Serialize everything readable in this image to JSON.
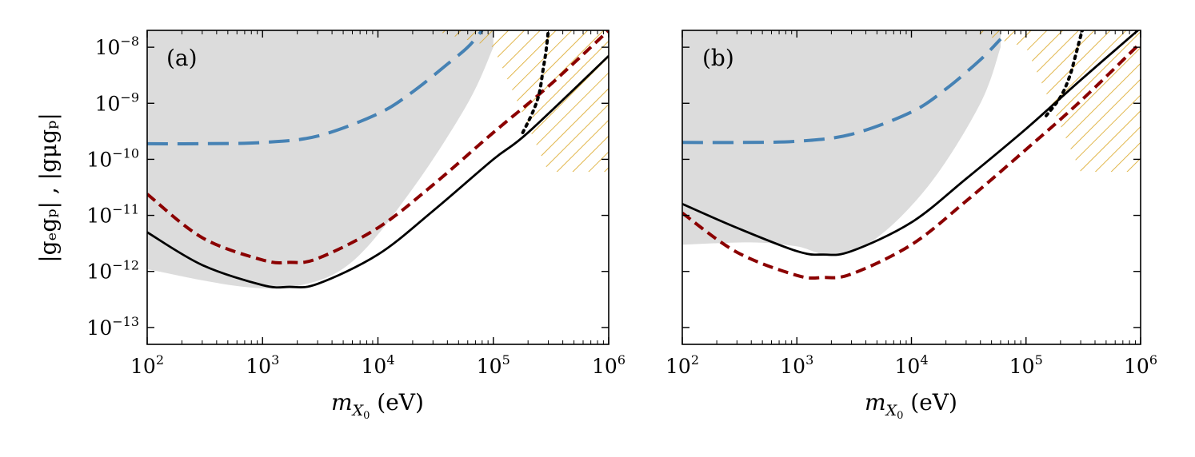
{
  "chart_data": [
    {
      "type": "line",
      "panel_label": "(a)",
      "xscale": "log",
      "yscale": "log",
      "xlim": [
        100,
        1000000
      ],
      "ylim": [
        5e-14,
        2e-08
      ],
      "xticks": [
        {
          "base": "10",
          "exp": "2"
        },
        {
          "base": "10",
          "exp": "3"
        },
        {
          "base": "10",
          "exp": "4"
        },
        {
          "base": "10",
          "exp": "5"
        },
        {
          "base": "10",
          "exp": "6"
        }
      ],
      "yticks": [
        {
          "base": "10",
          "exp": "−13",
          "value": 1e-13
        },
        {
          "base": "10",
          "exp": "−12",
          "value": 1e-12
        },
        {
          "base": "10",
          "exp": "−11",
          "value": 1e-11
        },
        {
          "base": "10",
          "exp": "−10",
          "value": 1e-10
        },
        {
          "base": "10",
          "exp": "−9",
          "value": 1e-09
        },
        {
          "base": "10",
          "exp": "−8",
          "value": 1e-08
        }
      ],
      "xlabel": {
        "main": "m",
        "sub": "X",
        "subsub": "0",
        "unit": " (eV)"
      },
      "ylabel": "|gₑgₚ| , |gμgₚ|",
      "gray_region": {
        "upper": {
          "x": [
            100,
            100000
          ],
          "y": [
            2e-08,
            2e-08
          ]
        },
        "lower": {
          "x": [
            100,
            600,
            2000,
            6000,
            20000,
            60000,
            100000
          ],
          "y": [
            1.1e-12,
            5.5e-13,
            5.5e-13,
            1.5e-12,
            3e-11,
            1e-09,
            1e-08
          ]
        }
      },
      "hatched_region": {
        "boundary": {
          "x": [
            30000,
            100000,
            300000,
            1000000,
            1000000,
            100000,
            30000
          ],
          "y": [
            2e-08,
            1e-08,
            6e-11,
            6e-11,
            2e-08,
            2e-08,
            2e-08
          ]
        }
      },
      "series": [
        {
          "name": "blue-dashed",
          "color": "#4682b4",
          "style": "longdash",
          "x": [
            100,
            300,
            1000,
            3000,
            10000,
            20000,
            40000,
            60000,
            80000
          ],
          "y": [
            1.9e-10,
            1.9e-10,
            2e-10,
            2.6e-10,
            6.5e-10,
            1.6e-09,
            5e-09,
            1e-08,
            2e-08
          ]
        },
        {
          "name": "darkred-dashed",
          "color": "#8b0000",
          "style": "dash",
          "x": [
            100,
            300,
            1000,
            1700,
            3000,
            10000,
            30000,
            100000,
            300000,
            1000000
          ],
          "y": [
            2.4e-11,
            4e-12,
            1.6e-12,
            1.45e-12,
            1.7e-12,
            6e-12,
            3.5e-11,
            3e-10,
            2e-09,
            2e-08
          ]
        },
        {
          "name": "black-solid",
          "color": "#000000",
          "style": "solid",
          "x": [
            100,
            300,
            1000,
            1700,
            3000,
            10000,
            30000,
            100000,
            200000,
            1000000
          ],
          "y": [
            5e-12,
            1.3e-12,
            5.7e-13,
            5.3e-13,
            6e-13,
            2e-12,
            1.2e-11,
            1e-10,
            3e-10,
            7e-09
          ]
        },
        {
          "name": "black-dotted",
          "color": "#000000",
          "style": "dot",
          "x": [
            180000,
            220000,
            250000,
            270000,
            285000,
            300000
          ],
          "y": [
            3e-10,
            7e-10,
            1.5e-09,
            4e-09,
            8e-09,
            2e-08
          ]
        }
      ]
    },
    {
      "type": "line",
      "panel_label": "(b)",
      "xscale": "log",
      "yscale": "log",
      "xlim": [
        100,
        1000000
      ],
      "ylim": [
        5e-14,
        2e-08
      ],
      "xticks": [
        {
          "base": "10",
          "exp": "2"
        },
        {
          "base": "10",
          "exp": "3"
        },
        {
          "base": "10",
          "exp": "4"
        },
        {
          "base": "10",
          "exp": "5"
        },
        {
          "base": "10",
          "exp": "6"
        }
      ],
      "yticks": [
        {
          "value": 1e-13
        },
        {
          "value": 1e-12
        },
        {
          "value": 1e-11
        },
        {
          "value": 1e-10
        },
        {
          "value": 1e-09
        },
        {
          "value": 1e-08
        }
      ],
      "xlabel": {
        "main": "m",
        "sub": "X",
        "subsub": "0",
        "unit": " (eV)"
      },
      "gray_region": {
        "upper": {
          "x": [
            100,
            60000
          ],
          "y": [
            2e-08,
            2e-08
          ]
        },
        "lower": {
          "x": [
            100,
            400,
            1000,
            2000,
            5000,
            15000,
            40000,
            60000
          ],
          "y": [
            3e-12,
            3.3e-12,
            2.8e-12,
            2e-12,
            4e-12,
            4e-11,
            1e-09,
            1e-08
          ]
        }
      },
      "hatched_region": {
        "boundary": {
          "x": [
            30000,
            100000,
            300000,
            1000000,
            1000000,
            100000,
            30000
          ],
          "y": [
            2e-08,
            1e-08,
            6e-11,
            6e-11,
            2e-08,
            2e-08,
            2e-08
          ]
        }
      },
      "series": [
        {
          "name": "blue-dashed",
          "color": "#4682b4",
          "style": "longdash",
          "x": [
            100,
            300,
            1000,
            3000,
            10000,
            20000,
            40000,
            60000
          ],
          "y": [
            2e-10,
            2e-10,
            2.1e-10,
            2.8e-10,
            7e-10,
            1.8e-09,
            6e-09,
            1.4e-08
          ]
        },
        {
          "name": "darkred-dashed",
          "color": "#8b0000",
          "style": "dash",
          "x": [
            100,
            300,
            1000,
            1700,
            3000,
            10000,
            30000,
            100000,
            300000,
            1000000
          ],
          "y": [
            1.1e-11,
            2.2e-12,
            8.5e-13,
            7.8e-13,
            9e-13,
            3e-12,
            1.8e-11,
            1.5e-10,
            1.1e-09,
            1.2e-08
          ]
        },
        {
          "name": "black-solid",
          "color": "#000000",
          "style": "solid",
          "x": [
            100,
            300,
            1000,
            1700,
            3000,
            10000,
            30000,
            100000,
            300000,
            1000000
          ],
          "y": [
            1.6e-11,
            6e-12,
            2.3e-12,
            2e-12,
            2.3e-12,
            7.5e-12,
            4.5e-11,
            3.5e-10,
            2.6e-09,
            2.2e-08
          ]
        },
        {
          "name": "black-dotted",
          "color": "#000000",
          "style": "dot",
          "x": [
            150000,
            200000,
            240000,
            270000,
            295000,
            310000
          ],
          "y": [
            6e-10,
            1.3e-09,
            3e-09,
            7e-09,
            1.4e-08,
            2e-08
          ]
        }
      ]
    }
  ]
}
